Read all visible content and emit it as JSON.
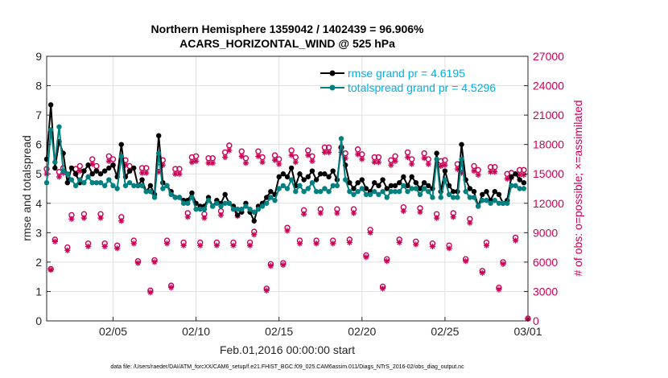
{
  "chart_data": {
    "type": "line",
    "title": [
      "Northern Hemisphere 1359042 / 1402439 = 96.906%",
      "ACARS_HORIZONTAL_WIND @ 525 hPa"
    ],
    "xlabel": "Feb.01,2016 00:00:00 start",
    "ylabel": "rmse and totalspread",
    "y2label": "# of obs: o=possible; ×=assimilated",
    "footnote": "data file: /Users/raeder/DAI/ATM_forcXX/CAM6_setup/f.e21.FHIST_BGC.f09_025.CAM6assim.011/Diags_NTrS_2016-02/obs_diag_output.nc",
    "xlim": [
      1,
      30
    ],
    "ylim": [
      0,
      9
    ],
    "y2lim": [
      0,
      27000
    ],
    "xticks": [
      5,
      10,
      15,
      20,
      25,
      30
    ],
    "xticklabels": [
      "02/05",
      "02/10",
      "02/15",
      "02/20",
      "02/25",
      "03/01"
    ],
    "yticks": [
      0,
      1,
      2,
      3,
      4,
      5,
      6,
      7,
      8,
      9
    ],
    "y2ticks": [
      0,
      3000,
      6000,
      9000,
      12000,
      15000,
      18000,
      21000,
      24000,
      27000
    ],
    "grid": true,
    "legend_position": "top-right",
    "colors": {
      "rmse": "#000000",
      "spread": "#008080",
      "obs": "#cc0055",
      "text": "#000000",
      "legend_text": "#00b0e8",
      "grid": "#e0e0e0"
    },
    "series": [
      {
        "name": "rmse grand pr = 4.6195",
        "x": [
          1.0,
          1.25,
          1.5,
          1.75,
          2.0,
          2.25,
          2.5,
          2.75,
          3.0,
          3.25,
          3.5,
          3.75,
          4.0,
          4.25,
          4.5,
          4.75,
          5.0,
          5.25,
          5.5,
          5.75,
          6.0,
          6.25,
          6.5,
          6.75,
          7.0,
          7.25,
          7.5,
          7.75,
          8.0,
          8.25,
          8.5,
          8.75,
          9.0,
          9.25,
          9.5,
          9.75,
          10.0,
          10.25,
          10.5,
          10.75,
          11.0,
          11.25,
          11.5,
          11.75,
          12.0,
          12.25,
          12.5,
          12.75,
          13.0,
          13.25,
          13.5,
          13.75,
          14.0,
          14.25,
          14.5,
          14.75,
          15.0,
          15.25,
          15.5,
          15.75,
          16.0,
          16.25,
          16.5,
          16.75,
          17.0,
          17.25,
          17.5,
          17.75,
          18.0,
          18.25,
          18.5,
          18.75,
          19.0,
          19.25,
          19.5,
          19.75,
          20.0,
          20.25,
          20.5,
          20.75,
          21.0,
          21.25,
          21.5,
          21.75,
          22.0,
          22.25,
          22.5,
          22.75,
          23.0,
          23.25,
          23.5,
          23.75,
          24.0,
          24.25,
          24.5,
          24.75,
          25.0,
          25.25,
          25.5,
          25.75,
          26.0,
          26.25,
          26.5,
          26.75,
          27.0,
          27.25,
          27.5,
          27.75,
          28.0,
          28.25,
          28.5,
          28.75,
          29.0,
          29.25,
          29.5,
          29.75
        ],
        "values": [
          5.5,
          7.35,
          5.2,
          6.1,
          5.7,
          4.7,
          5.2,
          5.0,
          4.7,
          5.1,
          5.3,
          5.0,
          5.1,
          5.0,
          5.1,
          5.2,
          5.3,
          4.9,
          6.0,
          4.9,
          5.1,
          5.2,
          4.6,
          4.8,
          4.4,
          4.6,
          4.3,
          6.3,
          4.7,
          4.6,
          4.4,
          4.2,
          4.2,
          4.1,
          4.1,
          4.35,
          4.0,
          3.9,
          3.9,
          4.2,
          3.9,
          4.1,
          4.0,
          4.3,
          4.0,
          3.9,
          3.6,
          3.7,
          4.0,
          3.7,
          3.4,
          3.9,
          4.0,
          4.2,
          4.4,
          4.3,
          4.9,
          5.0,
          4.9,
          5.2,
          4.6,
          5.0,
          4.8,
          4.9,
          5.1,
          4.8,
          5.0,
          5.0,
          4.9,
          5.1,
          4.8,
          5.9,
          5.3,
          4.7,
          4.5,
          4.7,
          4.8,
          4.5,
          4.4,
          4.7,
          4.6,
          4.8,
          4.5,
          4.6,
          4.6,
          4.7,
          4.9,
          4.6,
          4.9,
          4.7,
          4.5,
          4.7,
          4.6,
          4.5,
          5.7,
          4.4,
          5.1,
          4.6,
          4.4,
          4.4,
          6.0,
          4.8,
          4.5,
          4.4,
          3.9,
          4.3,
          4.4,
          4.1,
          4.4,
          4.3,
          4.0,
          4.1,
          4.9,
          5.0,
          4.8,
          4.7
        ]
      },
      {
        "name": "totalspread grand pr = 4.5296",
        "x": [
          1.0,
          1.25,
          1.5,
          1.75,
          2.0,
          2.25,
          2.5,
          2.75,
          3.0,
          3.25,
          3.5,
          3.75,
          4.0,
          4.25,
          4.5,
          4.75,
          5.0,
          5.25,
          5.5,
          5.75,
          6.0,
          6.25,
          6.5,
          6.75,
          7.0,
          7.25,
          7.5,
          7.75,
          8.0,
          8.25,
          8.5,
          8.75,
          9.0,
          9.25,
          9.5,
          9.75,
          10.0,
          10.25,
          10.5,
          10.75,
          11.0,
          11.25,
          11.5,
          11.75,
          12.0,
          12.25,
          12.5,
          12.75,
          13.0,
          13.25,
          13.5,
          13.75,
          14.0,
          14.25,
          14.5,
          14.75,
          15.0,
          15.25,
          15.5,
          15.75,
          16.0,
          16.25,
          16.5,
          16.75,
          17.0,
          17.25,
          17.5,
          17.75,
          18.0,
          18.25,
          18.5,
          18.75,
          19.0,
          19.25,
          19.5,
          19.75,
          20.0,
          20.25,
          20.5,
          20.75,
          21.0,
          21.25,
          21.5,
          21.75,
          22.0,
          22.25,
          22.5,
          22.75,
          23.0,
          23.25,
          23.5,
          23.75,
          24.0,
          24.25,
          24.5,
          24.75,
          25.0,
          25.25,
          25.5,
          25.75,
          26.0,
          26.25,
          26.5,
          26.75,
          27.0,
          27.25,
          27.5,
          27.75,
          28.0,
          28.25,
          28.5,
          28.75,
          29.0,
          29.25,
          29.5,
          29.75
        ],
        "values": [
          4.7,
          6.5,
          5.4,
          6.6,
          5.1,
          5.0,
          4.8,
          4.6,
          4.8,
          4.7,
          4.9,
          4.7,
          4.7,
          4.7,
          4.6,
          4.8,
          4.6,
          4.5,
          5.6,
          4.6,
          4.7,
          4.6,
          4.6,
          4.6,
          4.4,
          4.4,
          4.2,
          5.7,
          4.5,
          4.6,
          4.3,
          4.2,
          4.2,
          4.0,
          4.0,
          4.2,
          3.8,
          3.8,
          3.8,
          4.1,
          3.9,
          4.0,
          3.9,
          4.0,
          4.0,
          3.8,
          3.8,
          3.8,
          3.9,
          3.8,
          3.7,
          3.8,
          3.9,
          4.0,
          4.2,
          4.1,
          4.5,
          4.6,
          4.5,
          4.8,
          4.4,
          4.6,
          4.4,
          4.5,
          4.7,
          4.4,
          4.4,
          4.5,
          4.4,
          4.6,
          4.6,
          6.2,
          4.8,
          4.4,
          4.3,
          4.4,
          4.5,
          4.3,
          4.3,
          4.4,
          4.3,
          4.4,
          4.2,
          4.4,
          4.4,
          4.4,
          4.6,
          4.4,
          4.5,
          4.5,
          4.3,
          4.5,
          4.4,
          4.2,
          5.5,
          4.2,
          4.8,
          4.3,
          4.2,
          4.2,
          5.5,
          4.4,
          4.2,
          4.2,
          3.9,
          4.1,
          4.1,
          4.0,
          4.1,
          4.0,
          4.0,
          4.0,
          4.6,
          4.6,
          4.5,
          4.5
        ]
      }
    ],
    "obs_x": [
      1.0,
      1.25,
      1.5,
      1.75,
      2.0,
      2.25,
      2.5,
      2.75,
      3.0,
      3.25,
      3.5,
      3.75,
      4.0,
      4.25,
      4.5,
      4.75,
      5.0,
      5.25,
      5.5,
      5.75,
      6.0,
      6.25,
      6.5,
      6.75,
      7.0,
      7.25,
      7.5,
      7.75,
      8.0,
      8.25,
      8.5,
      8.75,
      9.0,
      9.25,
      9.5,
      9.75,
      10.0,
      10.25,
      10.5,
      10.75,
      11.0,
      11.25,
      11.5,
      11.75,
      12.0,
      12.25,
      12.5,
      12.75,
      13.0,
      13.25,
      13.5,
      13.75,
      14.0,
      14.25,
      14.5,
      14.75,
      15.0,
      15.25,
      15.5,
      15.75,
      16.0,
      16.25,
      16.5,
      16.75,
      17.0,
      17.25,
      17.5,
      17.75,
      18.0,
      18.25,
      18.5,
      18.75,
      19.0,
      19.25,
      19.5,
      19.75,
      20.0,
      20.25,
      20.5,
      20.75,
      21.0,
      21.25,
      21.5,
      21.75,
      22.0,
      22.25,
      22.5,
      22.75,
      23.0,
      23.25,
      23.5,
      23.75,
      24.0,
      24.25,
      24.5,
      24.75,
      25.0,
      25.25,
      25.5,
      25.75,
      26.0,
      26.25,
      26.5,
      26.75,
      27.0,
      27.25,
      27.5,
      27.75,
      28.0,
      28.25,
      28.5,
      28.75,
      29.0,
      29.25,
      29.5,
      29.75,
      30.0
    ],
    "obs_possible": [
      15500,
      5300,
      8300,
      15200,
      15600,
      7500,
      10800,
      15500,
      15800,
      10900,
      7900,
      16500,
      15800,
      10900,
      7900,
      16800,
      16500,
      7700,
      10600,
      16400,
      15800,
      8200,
      6100,
      15600,
      15600,
      3100,
      6200,
      15700,
      16400,
      8200,
      3600,
      15500,
      15500,
      8000,
      11000,
      16700,
      16800,
      8000,
      10900,
      16600,
      16600,
      8000,
      11200,
      17200,
      17900,
      8000,
      11100,
      17300,
      16600,
      8000,
      9100,
      17300,
      16700,
      3300,
      5800,
      16900,
      16500,
      5900,
      9500,
      17400,
      16700,
      8200,
      11300,
      17400,
      16800,
      8200,
      11400,
      17700,
      17700,
      8200,
      11400,
      17700,
      17100,
      8300,
      11400,
      17500,
      17000,
      6700,
      9300,
      16700,
      16700,
      3500,
      6300,
      16400,
      16800,
      8300,
      11600,
      17200,
      16500,
      8100,
      11500,
      17100,
      16500,
      7900,
      10900,
      16300,
      16400,
      7700,
      11000,
      16000,
      15600,
      6300,
      10400,
      15800,
      15400,
      5100,
      8000,
      15700,
      15700,
      3400,
      6000,
      15000,
      15100,
      8500,
      15400,
      15400,
      250
    ],
    "obs_assimilated": [
      15000,
      5200,
      8100,
      14700,
      15100,
      7200,
      10400,
      15000,
      15300,
      10500,
      7600,
      16000,
      15300,
      10500,
      7600,
      16300,
      15900,
      7400,
      10200,
      15900,
      15300,
      7900,
      5900,
      15100,
      15100,
      2900,
      6000,
      15200,
      15900,
      7900,
      3400,
      15000,
      15000,
      7700,
      10600,
      16200,
      16300,
      7700,
      10500,
      16100,
      16100,
      7700,
      10800,
      16700,
      17400,
      7700,
      10700,
      16800,
      16100,
      7700,
      8800,
      16800,
      16200,
      3100,
      5600,
      16400,
      16000,
      5700,
      9200,
      16900,
      16200,
      7900,
      10900,
      16900,
      16300,
      7900,
      11000,
      17200,
      17200,
      7900,
      11000,
      17200,
      16600,
      8000,
      11000,
      17000,
      16500,
      6500,
      9000,
      16200,
      16200,
      3300,
      6100,
      15900,
      16300,
      8000,
      11200,
      16700,
      16000,
      7800,
      11100,
      16600,
      16000,
      7600,
      10500,
      15800,
      15900,
      7400,
      10600,
      15500,
      15100,
      6100,
      10000,
      15300,
      14900,
      4900,
      7700,
      15200,
      15200,
      3200,
      5800,
      14500,
      14600,
      8200,
      14900,
      14900,
      200
    ]
  }
}
